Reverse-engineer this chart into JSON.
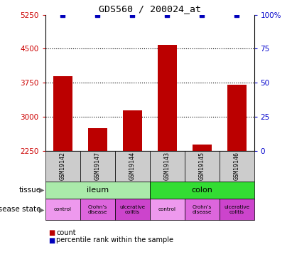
{
  "title": "GDS560 / 200024_at",
  "samples": [
    "GSM19142",
    "GSM19147",
    "GSM19144",
    "GSM19143",
    "GSM19145",
    "GSM19146"
  ],
  "counts": [
    3900,
    2750,
    3150,
    4580,
    2390,
    3700
  ],
  "percentiles": [
    100,
    100,
    100,
    100,
    100,
    100
  ],
  "ylim_left": [
    2250,
    5250
  ],
  "ylim_right": [
    0,
    100
  ],
  "yticks_left": [
    2250,
    3000,
    3750,
    4500,
    5250
  ],
  "yticks_right": [
    0,
    25,
    50,
    75,
    100
  ],
  "ytick_labels_left": [
    "2250",
    "3000",
    "3750",
    "4500",
    "5250"
  ],
  "ytick_labels_right": [
    "0",
    "25",
    "50",
    "75",
    "100%"
  ],
  "bar_color": "#bb0000",
  "dot_color": "#0000bb",
  "tissue_info": [
    [
      0,
      3,
      "ileum",
      "#aaeaaa"
    ],
    [
      3,
      6,
      "colon",
      "#33dd33"
    ]
  ],
  "disease_labels": [
    "control",
    "Crohn’s\ndisease",
    "ulcerative\ncolitis",
    "control",
    "Crohn’s\ndisease",
    "ulcerative\ncolitis"
  ],
  "disease_colors": [
    "#ee99ee",
    "#dd66dd",
    "#cc44cc",
    "#ee99ee",
    "#dd66dd",
    "#cc44cc"
  ],
  "sample_bg_color": "#cccccc",
  "left_tick_color": "#cc0000",
  "right_tick_color": "#0000cc"
}
